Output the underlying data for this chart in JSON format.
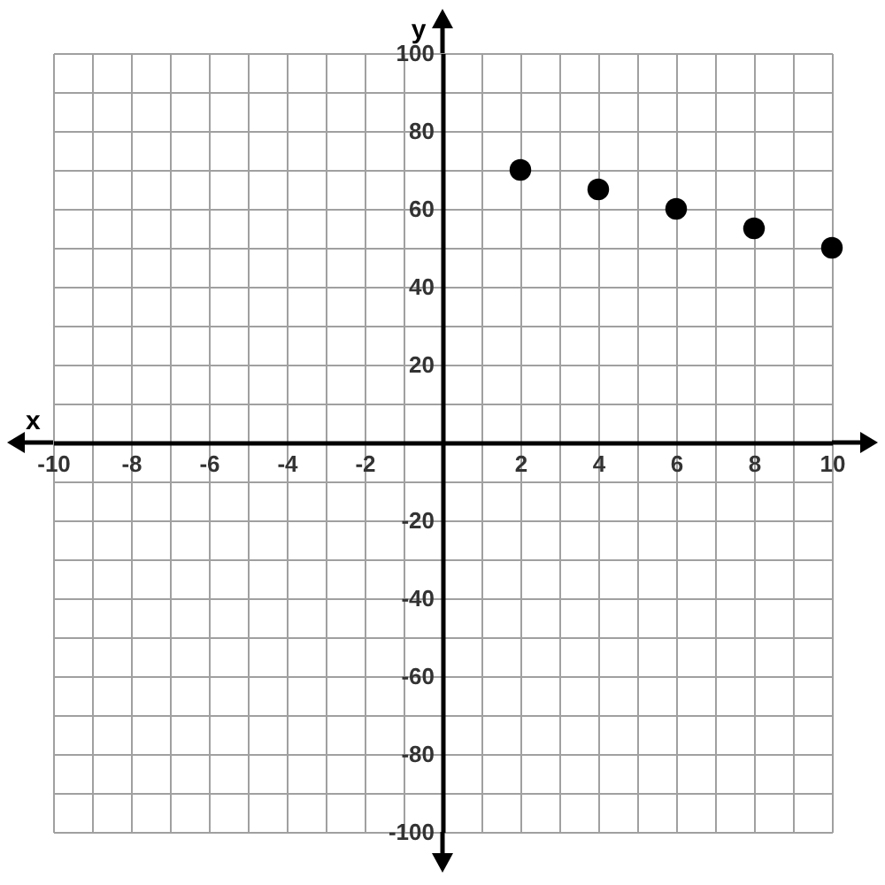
{
  "chart_data": {
    "type": "scatter",
    "xlabel": "x",
    "ylabel": "y",
    "x": [
      2,
      4,
      6,
      8,
      10
    ],
    "series": [
      {
        "color": "#000000",
        "values": [
          70,
          65,
          60,
          55,
          50
        ]
      }
    ],
    "xlim": [
      -10,
      10
    ],
    "ylim": [
      -100,
      100
    ],
    "xticks": [
      -10,
      {
        "value": -9,
        "label": null
      },
      -8,
      {
        "value": -7,
        "label": null
      },
      -6,
      {
        "value": -5,
        "label": null
      },
      -4,
      {
        "value": -3,
        "label": null
      },
      -2,
      {
        "value": -1,
        "label": null
      },
      {
        "value": 0,
        "label": null
      },
      {
        "value": 1,
        "label": null
      },
      2,
      {
        "value": 3,
        "label": null
      },
      4,
      {
        "value": 5,
        "label": null
      },
      6,
      {
        "value": 7,
        "label": null
      },
      8,
      {
        "value": 9,
        "label": null
      },
      10
    ],
    "yticks": [
      -100,
      {
        "value": -90,
        "label": null
      },
      -80,
      {
        "value": -70,
        "label": null
      },
      -60,
      {
        "value": -50,
        "label": null
      },
      -40,
      {
        "value": -30,
        "label": null
      },
      -20,
      {
        "value": -10,
        "label": null
      },
      {
        "value": 0,
        "label": null
      },
      {
        "value": 10,
        "label": null
      },
      20,
      {
        "value": 30,
        "label": null
      },
      40,
      {
        "value": 50,
        "label": null
      },
      60,
      {
        "value": 70,
        "label": null
      },
      80,
      {
        "value": 90,
        "label": null
      },
      100
    ],
    "grid": true,
    "marker": "circle"
  }
}
